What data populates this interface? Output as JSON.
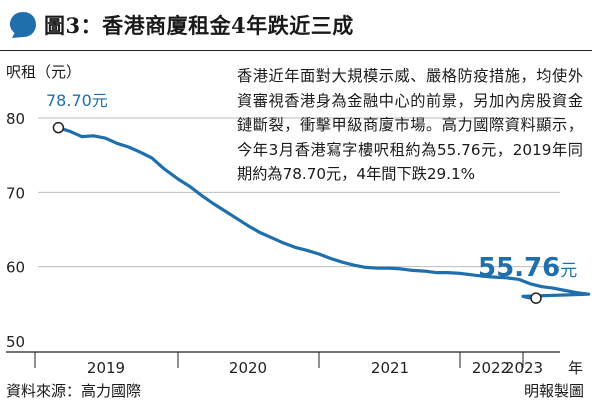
{
  "title": "圖3：香港商廈租金4年跌近三成",
  "ylabel": "呎租（元）",
  "description": "香港近年面對大規模示威、嚴格防疫措施，均使外資審視香港身為金融中心的前景，另加內房股資金鏈斷裂，衝擊甲級商廈市場。高力國際資料顯示，今年3月香港寫字樓呎租約為55.76元，2019年同期約為78.70元，4年間下跌29.1%",
  "source": "資料來源：高力國際",
  "credit": "明報製圖",
  "colors": {
    "line": "#1f6fad",
    "accent": "#1f6fad",
    "grid": "#bdbdbd"
  },
  "chart_data": {
    "type": "line",
    "xlabel": "年",
    "ylim": [
      50,
      80
    ],
    "yticks": [
      50,
      60,
      70,
      80
    ],
    "grid": true,
    "x_ticks": [
      "2019",
      "2020",
      "2021",
      "2022",
      "2023"
    ],
    "annotations": [
      {
        "label": "78.70元",
        "point": "first"
      },
      {
        "label": "55.76元",
        "point": "last"
      }
    ],
    "series": [
      {
        "x": [
          "2019-03",
          "2019-04",
          "2019-05",
          "2019-06",
          "2019-07",
          "2019-08",
          "2019-09",
          "2019-10",
          "2019-11",
          "2019-12",
          "2020-01",
          "2020-02",
          "2020-03",
          "2020-04",
          "2020-05",
          "2020-06",
          "2020-07",
          "2020-08",
          "2020-09",
          "2020-10",
          "2020-11",
          "2020-12",
          "2021-01",
          "2021-02",
          "2021-03",
          "2021-04",
          "2021-05",
          "2021-06",
          "2021-07",
          "2021-08",
          "2021-09",
          "2021-10",
          "2021-11",
          "2021-12",
          "2022-01",
          "2022-02",
          "2022-03",
          "2022-04",
          "2022-05",
          "2022-06",
          "2022-07",
          "2022-08",
          "2022-09",
          "2022-10",
          "2022-11",
          "2022-12",
          "2023-01",
          "2023-02",
          "2023-03"
        ],
        "values": [
          78.7,
          78.2,
          77.5,
          77.6,
          77.3,
          76.6,
          76.1,
          75.4,
          74.6,
          73.2,
          71.8,
          70.8,
          69.6,
          68.5,
          67.5,
          66.5,
          65.5,
          64.6,
          63.9,
          63.2,
          62.6,
          62.2,
          61.7,
          61.1,
          60.6,
          60.2,
          59.9,
          59.8,
          59.8,
          59.7,
          59.5,
          59.4,
          59.2,
          59.2,
          59.1,
          58.9,
          58.7,
          58.6,
          58.5,
          58.3,
          57.7,
          57.3,
          57.1,
          56.8,
          56.5,
          56.3,
          56.0,
          55.8,
          55.76
        ]
      }
    ]
  }
}
